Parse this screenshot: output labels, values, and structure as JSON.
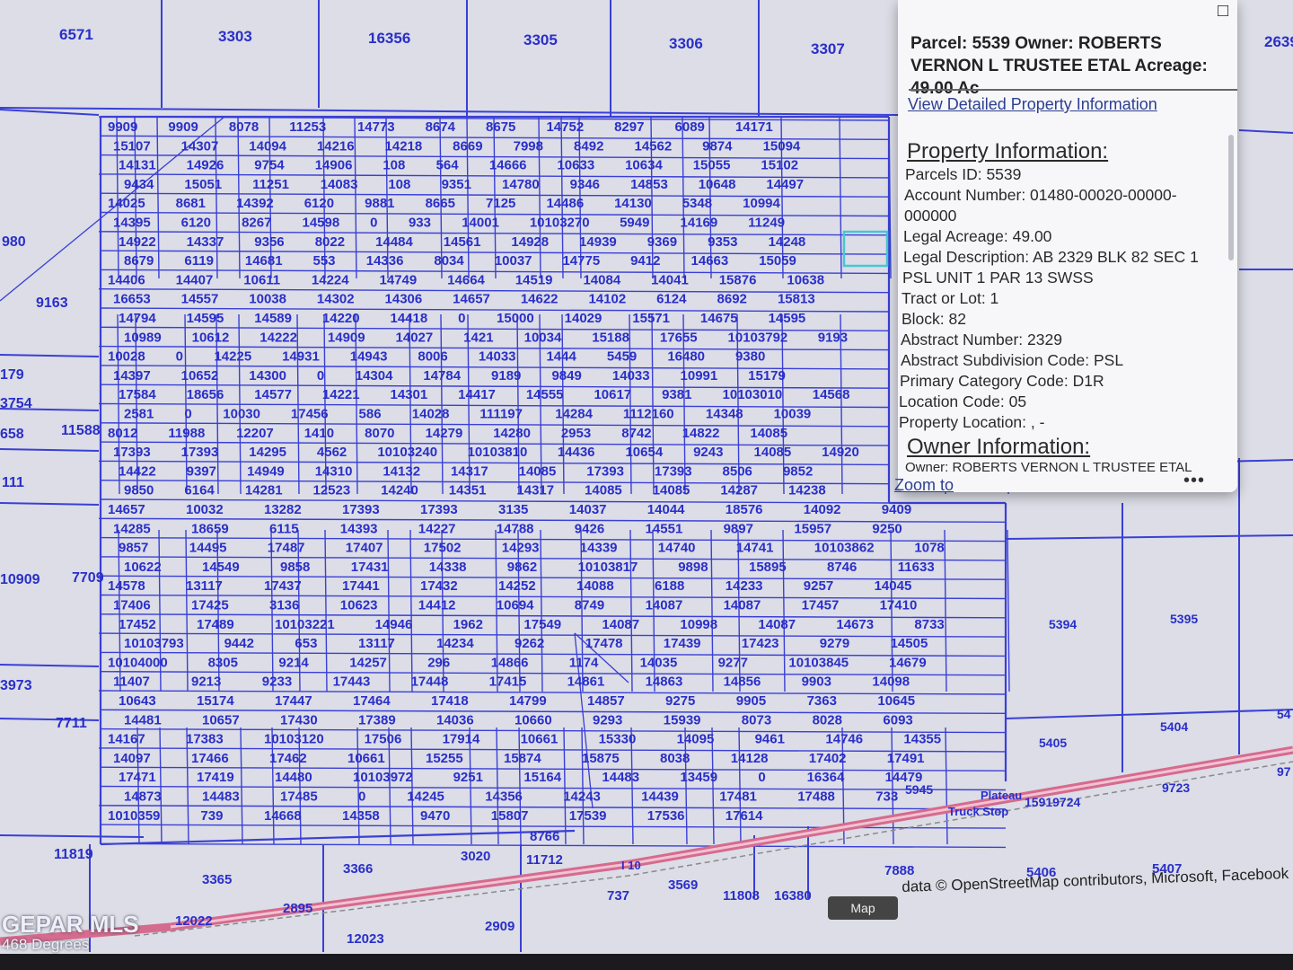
{
  "popup": {
    "title": "Parcel: 5539 Owner: ROBERTS VERNON L TRUSTEE ETAL Acreage: 49.00 Ac",
    "detail_link": "View Detailed Property Information",
    "property_header": "Property Information:",
    "rows": [
      "Parcels ID: 5539",
      "Account Number: 01480-00020-00000-",
      "000000",
      "Legal Acreage: 49.00",
      "Legal Description: AB 2329 BLK 82 SEC 1",
      "PSL UNIT 1 PAR 13 SWSS",
      "Tract or Lot: 1",
      "Block: 82",
      "Abstract Number: 2329",
      "Abstract Subdivision Code: PSL",
      "Primary Category Code: D1R",
      "Location Code: 05",
      "Property Location: , -"
    ],
    "owner_header": "Owner Information:",
    "owner_row": "Owner: ROBERTS VERNON L TRUSTEE ETAL",
    "zoom_link": "Zoom to",
    "more": "•••",
    "restore_icon": "□",
    "close_icon": "✕"
  },
  "attribution": "data © OpenStreetMap contributors, Microsoft, Facebook",
  "attribution_button": "Map",
  "watermark": "GEPAR MLS",
  "watermark_sub": "468 Degrees",
  "map_labels": {
    "top": [
      "6571",
      "3303",
      "16356",
      "3305",
      "3306",
      "3307",
      "2639"
    ],
    "left": [
      "980",
      "9163",
      "179",
      "3754",
      "658",
      "11588",
      "111",
      "10909",
      "7709",
      "3973",
      "7711",
      "11819"
    ],
    "bottom": [
      "3365",
      "3366",
      "3020",
      "11712",
      "8766",
      "737",
      "3569",
      "11808",
      "16380",
      "2895",
      "12022",
      "12023",
      "2909",
      "7888",
      "5406",
      "5407"
    ],
    "right": [
      "5394",
      "5395",
      "5404",
      "5405",
      "9723",
      "5945",
      "15919724",
      "54",
      "97"
    ],
    "road": "I 10",
    "place": [
      "Plateau",
      "Truck Stop"
    ],
    "grid": [
      "9909",
      "9909",
      "8078",
      "11253",
      "14773",
      "8674",
      "8675",
      "14752",
      "8297",
      "6089",
      "14171",
      "15107",
      "14307",
      "14094",
      "14216",
      "14218",
      "8669",
      "7998",
      "8492",
      "14562",
      "9874",
      "15094",
      "14131",
      "14926",
      "9754",
      "14906",
      "108",
      "564",
      "14666",
      "10633",
      "10634",
      "15055",
      "15102",
      "9434",
      "15051",
      "11251",
      "14083",
      "108",
      "9351",
      "14780",
      "9346",
      "14853",
      "10648",
      "14497",
      "14025",
      "8681",
      "14392",
      "6120",
      "9881",
      "8665",
      "7125",
      "14486",
      "14130",
      "5348",
      "10994",
      "14395",
      "6120",
      "8267",
      "14598",
      "0",
      "933",
      "14001",
      "10103270",
      "5949",
      "14169",
      "11249",
      "14922",
      "14337",
      "9356",
      "8022",
      "14484",
      "14561",
      "14928",
      "14939",
      "9369",
      "9353",
      "14248",
      "8679",
      "6119",
      "14681",
      "553",
      "14336",
      "8034",
      "10037",
      "14775",
      "9412",
      "14663",
      "15059",
      "14406",
      "14407",
      "10611",
      "14224",
      "14749",
      "14664",
      "14519",
      "14084",
      "14041",
      "15876",
      "10638",
      "16653",
      "14557",
      "10038",
      "14302",
      "14306",
      "14657",
      "14622",
      "14102",
      "6124",
      "8692",
      "15813",
      "14794",
      "14595",
      "14589",
      "14220",
      "14418",
      "0",
      "15000",
      "14029",
      "15571",
      "14675",
      "14595",
      "10989",
      "10612",
      "14222",
      "14909",
      "14027",
      "1421",
      "10034",
      "15188",
      "17655",
      "10103792",
      "9193",
      "10028",
      "0",
      "14225",
      "14931",
      "14943",
      "8006",
      "14033",
      "1444",
      "5459",
      "16480",
      "9380",
      "14397",
      "10652",
      "14300",
      "0",
      "14304",
      "14784",
      "9189",
      "9849",
      "14033",
      "10991",
      "15179",
      "17584",
      "18656",
      "14577",
      "14221",
      "14301",
      "14417",
      "14555",
      "10617",
      "9381",
      "10103010",
      "14568",
      "2581",
      "0",
      "10030",
      "17456",
      "586",
      "14028",
      "111197",
      "14284",
      "1112160",
      "14348",
      "10039",
      "8012",
      "11988",
      "12207",
      "1410",
      "8070",
      "14279",
      "14280",
      "2953",
      "8742",
      "14822",
      "14085",
      "17393",
      "17393",
      "14295",
      "4562",
      "10103240",
      "10103810",
      "14436",
      "10654",
      "9243",
      "14085",
      "14920",
      "14422",
      "9397",
      "14949",
      "14310",
      "14132",
      "14317",
      "14085",
      "17393",
      "17393",
      "8506",
      "9852",
      "9850",
      "6164",
      "14281",
      "12523",
      "14240",
      "14351",
      "14317",
      "14085",
      "14085",
      "14287",
      "14238",
      "14657",
      "10032",
      "13282",
      "17393",
      "17393",
      "3135",
      "14037",
      "14044",
      "18576",
      "14092",
      "9409",
      "14285",
      "18659",
      "6115",
      "14393",
      "14227",
      "14788",
      "9426",
      "14551",
      "9897",
      "15957",
      "9250",
      "9857",
      "14495",
      "17487",
      "17407",
      "17502",
      "14293",
      "14339",
      "14740",
      "14741",
      "10103862",
      "1078",
      "10622",
      "14549",
      "9858",
      "17431",
      "14338",
      "9862",
      "10103817",
      "9898",
      "15895",
      "8746",
      "11633",
      "14578",
      "13117",
      "17437",
      "17441",
      "17432",
      "14252",
      "14088",
      "6188",
      "14233",
      "9257",
      "14045",
      "17406",
      "17425",
      "3136",
      "10623",
      "14412",
      "10694",
      "8749",
      "14087",
      "14087",
      "17457",
      "17410",
      "17452",
      "17489",
      "10103221",
      "14946",
      "1962",
      "17549",
      "14087",
      "10998",
      "14087",
      "14673",
      "8733",
      "10103793",
      "9442",
      "653",
      "13117",
      "14234",
      "9262",
      "17478",
      "17439",
      "17423",
      "9279",
      "14505",
      "10104000",
      "8305",
      "9214",
      "14257",
      "296",
      "14866",
      "1174",
      "14035",
      "9277",
      "10103845",
      "14679",
      "11407",
      "9213",
      "9233",
      "17443",
      "17448",
      "17415",
      "14861",
      "14863",
      "14856",
      "9903",
      "14098",
      "10643",
      "15174",
      "17447",
      "17464",
      "17418",
      "14799",
      "14857",
      "9275",
      "9905",
      "7363",
      "10645",
      "14481",
      "10657",
      "17430",
      "17389",
      "14036",
      "10660",
      "9293",
      "15939",
      "8073",
      "8028",
      "6093",
      "14167",
      "17383",
      "10103120",
      "17506",
      "17914",
      "10661",
      "15330",
      "14095",
      "9461",
      "14746",
      "14355",
      "14097",
      "17466",
      "17462",
      "10661",
      "15255",
      "15874",
      "15875",
      "8038",
      "14128",
      "17402",
      "17491",
      "17471",
      "17419",
      "14480",
      "10103972",
      "9251",
      "15164",
      "14483",
      "13459",
      "0",
      "16364",
      "14479",
      "14873",
      "14483",
      "17485",
      "0",
      "14245",
      "14356",
      "14243",
      "14439",
      "17481",
      "17488",
      "733",
      "1010359",
      "739",
      "14668",
      "14358",
      "9470",
      "15807",
      "17539",
      "17536",
      "17614"
    ]
  }
}
